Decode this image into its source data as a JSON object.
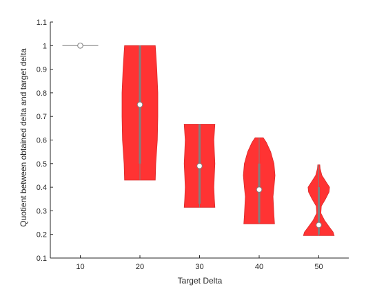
{
  "chart_data": {
    "type": "violin",
    "xlabel": "Target Delta",
    "ylabel": "Quotient between obtained delta and target delta",
    "categories": [
      "10",
      "20",
      "30",
      "40",
      "50"
    ],
    "ylim": [
      0.1,
      1.1
    ],
    "yticks": [
      "0.1",
      "0.2",
      "0.3",
      "0.4",
      "0.5",
      "0.6",
      "0.7",
      "0.8",
      "0.9",
      "1",
      "1.1"
    ],
    "grid": false,
    "fill_color": "#ff3333",
    "whisker_color": "#808080",
    "median_marker_color": "#ffffff",
    "violins": [
      {
        "category": "10",
        "min": 1.0,
        "max": 1.0,
        "median": 1.0,
        "q1": 1.0,
        "q3": 1.0,
        "profile": [
          [
            1.0,
            0.6
          ]
        ]
      },
      {
        "category": "20",
        "min": 0.43,
        "max": 1.0,
        "median": 0.75,
        "q1": 0.5,
        "q3": 1.0,
        "profile": [
          [
            0.43,
            0.6
          ],
          [
            0.5,
            0.62
          ],
          [
            0.6,
            0.68
          ],
          [
            0.7,
            0.7
          ],
          [
            0.8,
            0.7
          ],
          [
            0.9,
            0.66
          ],
          [
            0.97,
            0.62
          ],
          [
            1.0,
            0.6
          ]
        ]
      },
      {
        "category": "30",
        "min": 0.315,
        "max": 0.667,
        "median": 0.49,
        "q1": 0.33,
        "q3": 0.667,
        "profile": [
          [
            0.315,
            0.6
          ],
          [
            0.35,
            0.58
          ],
          [
            0.4,
            0.56
          ],
          [
            0.45,
            0.58
          ],
          [
            0.5,
            0.6
          ],
          [
            0.55,
            0.58
          ],
          [
            0.6,
            0.56
          ],
          [
            0.667,
            0.6
          ]
        ]
      },
      {
        "category": "40",
        "min": 0.245,
        "max": 0.61,
        "median": 0.39,
        "q1": 0.25,
        "q3": 0.5,
        "profile": [
          [
            0.245,
            0.6
          ],
          [
            0.28,
            0.58
          ],
          [
            0.32,
            0.56
          ],
          [
            0.36,
            0.54
          ],
          [
            0.4,
            0.58
          ],
          [
            0.45,
            0.62
          ],
          [
            0.5,
            0.58
          ],
          [
            0.55,
            0.45
          ],
          [
            0.59,
            0.28
          ],
          [
            0.61,
            0.16
          ]
        ]
      },
      {
        "category": "50",
        "min": 0.195,
        "max": 0.495,
        "median": 0.24,
        "q1": 0.2,
        "q3": 0.4,
        "profile": [
          [
            0.195,
            0.6
          ],
          [
            0.21,
            0.56
          ],
          [
            0.23,
            0.42
          ],
          [
            0.26,
            0.22
          ],
          [
            0.29,
            0.08
          ],
          [
            0.32,
            0.1
          ],
          [
            0.35,
            0.26
          ],
          [
            0.38,
            0.4
          ],
          [
            0.4,
            0.42
          ],
          [
            0.42,
            0.3
          ],
          [
            0.45,
            0.12
          ],
          [
            0.48,
            0.05
          ],
          [
            0.495,
            0.04
          ]
        ]
      }
    ]
  }
}
